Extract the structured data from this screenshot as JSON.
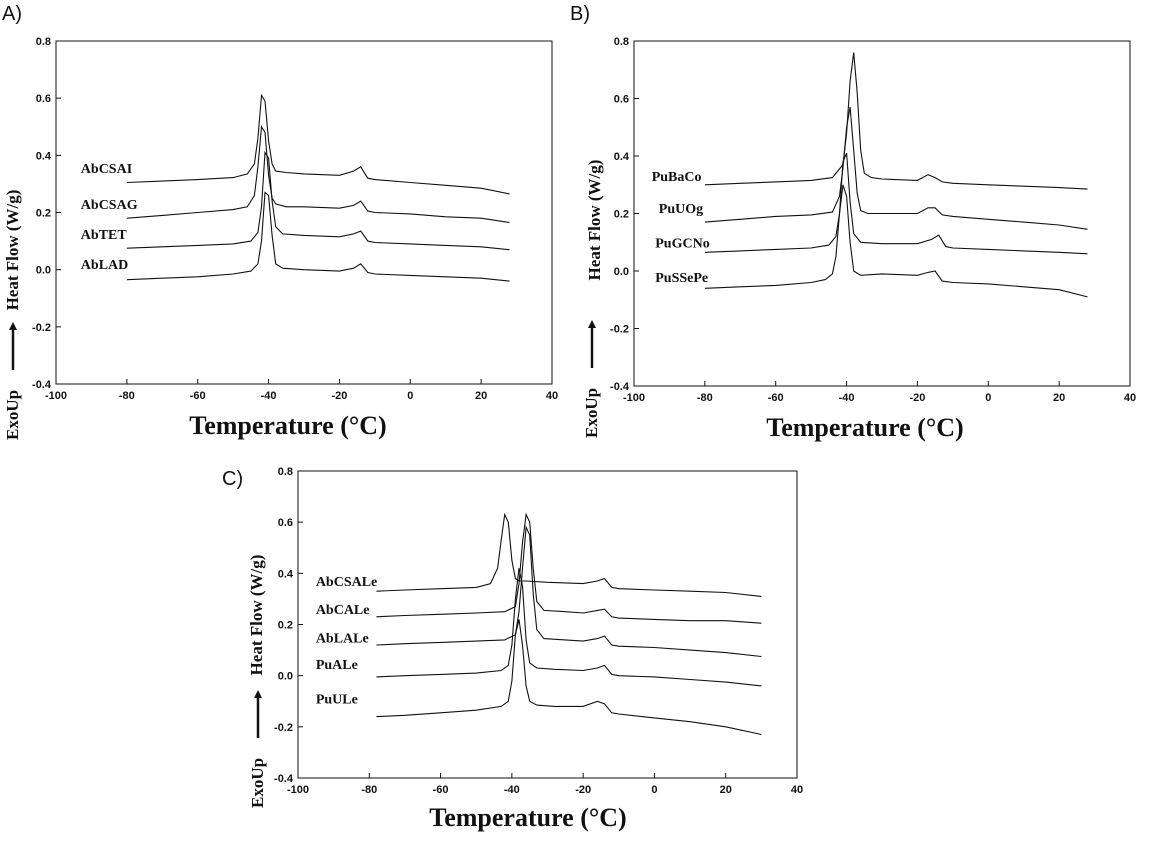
{
  "chart_data": [
    {
      "panel": "A)",
      "type": "line",
      "xlabel": "Temperature (°C)",
      "ylabel": "Heat Flow (W/g)",
      "exo_label": "ExoUp",
      "xlim": [
        -100,
        40
      ],
      "ylim": [
        -0.4,
        0.8
      ],
      "xticks": [
        -100,
        -80,
        -60,
        -40,
        -20,
        0,
        20,
        40
      ],
      "yticks": [
        -0.4,
        -0.2,
        0.0,
        0.2,
        0.4,
        0.6,
        0.8
      ],
      "xtick_labels": [
        "-100",
        "-80",
        "-60",
        "-40",
        "-20",
        "0",
        "20",
        "40"
      ],
      "ytick_labels": [
        "-0.4",
        "-0.2",
        "0.0",
        "0.2",
        "0.4",
        "0.6",
        "0.8"
      ],
      "series": [
        {
          "name": "AbCSAI",
          "label_at": [
            -93,
            0.355
          ],
          "x": [
            -80,
            -70,
            -60,
            -50,
            -46,
            -44,
            -43,
            -42,
            -41,
            -40,
            -39,
            -38,
            -35,
            -30,
            -20,
            -16,
            -14,
            -12,
            -10,
            0,
            10,
            20,
            28
          ],
          "y": [
            0.305,
            0.31,
            0.315,
            0.322,
            0.335,
            0.37,
            0.46,
            0.61,
            0.59,
            0.45,
            0.37,
            0.345,
            0.34,
            0.335,
            0.33,
            0.345,
            0.36,
            0.32,
            0.315,
            0.305,
            0.295,
            0.285,
            0.265
          ]
        },
        {
          "name": "AbCSAG",
          "label_at": [
            -93,
            0.23
          ],
          "x": [
            -80,
            -70,
            -60,
            -50,
            -46,
            -44,
            -43,
            -42,
            -41,
            -40,
            -39,
            -38,
            -35,
            -30,
            -20,
            -16,
            -14,
            -12,
            -10,
            0,
            10,
            20,
            28
          ],
          "y": [
            0.18,
            0.19,
            0.2,
            0.21,
            0.22,
            0.26,
            0.36,
            0.5,
            0.48,
            0.33,
            0.25,
            0.23,
            0.22,
            0.22,
            0.215,
            0.225,
            0.24,
            0.205,
            0.2,
            0.195,
            0.185,
            0.18,
            0.165
          ]
        },
        {
          "name": "AbTET",
          "label_at": [
            -93,
            0.125
          ],
          "x": [
            -80,
            -70,
            -60,
            -50,
            -45,
            -43,
            -42,
            -41,
            -40,
            -39,
            -38,
            -36,
            -30,
            -20,
            -16,
            -14,
            -12,
            -10,
            0,
            10,
            20,
            28
          ],
          "y": [
            0.075,
            0.08,
            0.085,
            0.09,
            0.1,
            0.13,
            0.22,
            0.41,
            0.39,
            0.24,
            0.15,
            0.125,
            0.12,
            0.115,
            0.125,
            0.135,
            0.1,
            0.095,
            0.09,
            0.085,
            0.08,
            0.07
          ]
        },
        {
          "name": "AbLAD",
          "label_at": [
            -93,
            0.02
          ],
          "x": [
            -80,
            -70,
            -60,
            -50,
            -45,
            -43,
            -42,
            -41,
            -40,
            -39,
            -38,
            -36,
            -30,
            -20,
            -16,
            -14,
            -12,
            -10,
            0,
            10,
            20,
            28
          ],
          "y": [
            -0.035,
            -0.03,
            -0.025,
            -0.015,
            -0.005,
            0.02,
            0.1,
            0.27,
            0.26,
            0.12,
            0.02,
            0.005,
            0.0,
            -0.005,
            0.005,
            0.02,
            -0.01,
            -0.015,
            -0.02,
            -0.025,
            -0.03,
            -0.04
          ]
        }
      ]
    },
    {
      "panel": "B)",
      "type": "line",
      "xlabel": "Temperature (°C)",
      "ylabel": "Heat Flow (W/g)",
      "exo_label": "ExoUp",
      "xlim": [
        -100,
        40
      ],
      "ylim": [
        -0.4,
        0.8
      ],
      "xticks": [
        -100,
        -80,
        -60,
        -40,
        -20,
        0,
        20,
        40
      ],
      "yticks": [
        -0.4,
        -0.2,
        0.0,
        0.2,
        0.4,
        0.6,
        0.8
      ],
      "xtick_labels": [
        "-100",
        "-80",
        "-60",
        "-40",
        "-20",
        "0",
        "20",
        "40"
      ],
      "ytick_labels": [
        "-0.4",
        "-0.2",
        "0.0",
        "0.2",
        "0.4",
        "0.6",
        "0.8"
      ],
      "series": [
        {
          "name": "PuBaCo",
          "label_at": [
            -95,
            0.33
          ],
          "x": [
            -80,
            -70,
            -60,
            -50,
            -44,
            -41,
            -40,
            -39,
            -38,
            -37,
            -36,
            -35,
            -33,
            -30,
            -20,
            -17,
            -15,
            -13,
            -10,
            0,
            10,
            20,
            28
          ],
          "y": [
            0.3,
            0.305,
            0.31,
            0.315,
            0.325,
            0.37,
            0.48,
            0.66,
            0.76,
            0.62,
            0.42,
            0.34,
            0.325,
            0.32,
            0.315,
            0.335,
            0.325,
            0.31,
            0.305,
            0.3,
            0.295,
            0.29,
            0.285
          ]
        },
        {
          "name": "PuUOg",
          "label_at": [
            -93,
            0.22
          ],
          "x": [
            -80,
            -70,
            -60,
            -50,
            -44,
            -42,
            -41,
            -40,
            -39,
            -38,
            -37,
            -36,
            -34,
            -30,
            -20,
            -17,
            -15,
            -13,
            -10,
            0,
            10,
            20,
            28
          ],
          "y": [
            0.17,
            0.18,
            0.19,
            0.195,
            0.205,
            0.26,
            0.36,
            0.5,
            0.57,
            0.42,
            0.27,
            0.21,
            0.2,
            0.2,
            0.2,
            0.22,
            0.22,
            0.195,
            0.19,
            0.18,
            0.17,
            0.16,
            0.145
          ]
        },
        {
          "name": "PuGCNo",
          "label_at": [
            -94,
            0.1
          ],
          "x": [
            -80,
            -70,
            -60,
            -50,
            -45,
            -43,
            -42,
            -41,
            -40,
            -39,
            -38,
            -36,
            -30,
            -20,
            -16,
            -14,
            -12,
            -10,
            0,
            10,
            20,
            28
          ],
          "y": [
            0.065,
            0.07,
            0.075,
            0.08,
            0.09,
            0.12,
            0.2,
            0.38,
            0.41,
            0.24,
            0.13,
            0.1,
            0.095,
            0.095,
            0.11,
            0.125,
            0.085,
            0.08,
            0.075,
            0.07,
            0.065,
            0.06
          ]
        },
        {
          "name": "PuSSePe",
          "label_at": [
            -94,
            -0.02
          ],
          "x": [
            -80,
            -70,
            -60,
            -50,
            -46,
            -44,
            -43,
            -42,
            -41,
            -40,
            -39,
            -38,
            -36,
            -30,
            -20,
            -17,
            -15,
            -13,
            -10,
            0,
            10,
            20,
            28
          ],
          "y": [
            -0.06,
            -0.055,
            -0.05,
            -0.04,
            -0.03,
            -0.01,
            0.05,
            0.2,
            0.3,
            0.26,
            0.1,
            0.0,
            -0.015,
            -0.01,
            -0.015,
            -0.005,
            0.0,
            -0.035,
            -0.04,
            -0.045,
            -0.055,
            -0.065,
            -0.09
          ]
        }
      ]
    },
    {
      "panel": "C)",
      "type": "line",
      "xlabel": "Temperature (°C)",
      "ylabel": "Heat Flow (W/g)",
      "exo_label": "ExoUp",
      "xlim": [
        -100,
        40
      ],
      "ylim": [
        -0.4,
        0.8
      ],
      "xticks": [
        -100,
        -80,
        -60,
        -40,
        -20,
        0,
        20,
        40
      ],
      "yticks": [
        -0.4,
        -0.2,
        0.0,
        0.2,
        0.4,
        0.6,
        0.8
      ],
      "xtick_labels": [
        "-100",
        "-80",
        "-60",
        "-40",
        "-20",
        "0",
        "20",
        "40"
      ],
      "ytick_labels": [
        "-0.4",
        "-0.2",
        "0.0",
        "0.2",
        "0.4",
        "0.6",
        "0.8"
      ],
      "series": [
        {
          "name": "AbCSALe",
          "label_at": [
            -95,
            0.37
          ],
          "x": [
            -78,
            -70,
            -60,
            -50,
            -46,
            -44,
            -43,
            -42,
            -41,
            -40,
            -39,
            -38,
            -36,
            -30,
            -20,
            -16,
            -14,
            -12,
            -10,
            0,
            10,
            20,
            30
          ],
          "y": [
            0.33,
            0.335,
            0.34,
            0.345,
            0.36,
            0.42,
            0.53,
            0.63,
            0.6,
            0.45,
            0.38,
            0.37,
            0.37,
            0.365,
            0.36,
            0.37,
            0.38,
            0.345,
            0.34,
            0.335,
            0.33,
            0.325,
            0.31
          ]
        },
        {
          "name": "AbCALe",
          "label_at": [
            -95,
            0.26
          ],
          "x": [
            -78,
            -70,
            -60,
            -50,
            -42,
            -39,
            -38,
            -37,
            -36,
            -35,
            -34,
            -33,
            -31,
            -25,
            -20,
            -16,
            -14,
            -12,
            -10,
            0,
            10,
            20,
            30
          ],
          "y": [
            0.23,
            0.235,
            0.24,
            0.245,
            0.25,
            0.27,
            0.36,
            0.52,
            0.63,
            0.6,
            0.42,
            0.29,
            0.255,
            0.25,
            0.245,
            0.255,
            0.26,
            0.23,
            0.225,
            0.22,
            0.215,
            0.215,
            0.205
          ]
        },
        {
          "name": "AbLALe",
          "label_at": [
            -95,
            0.15
          ],
          "x": [
            -78,
            -70,
            -60,
            -50,
            -42,
            -39,
            -38,
            -37,
            -36,
            -35,
            -34,
            -33,
            -31,
            -25,
            -20,
            -16,
            -14,
            -12,
            -10,
            0,
            10,
            20,
            30
          ],
          "y": [
            0.12,
            0.125,
            0.13,
            0.135,
            0.14,
            0.16,
            0.25,
            0.42,
            0.58,
            0.55,
            0.32,
            0.18,
            0.145,
            0.14,
            0.135,
            0.145,
            0.155,
            0.12,
            0.115,
            0.11,
            0.1,
            0.09,
            0.075
          ]
        },
        {
          "name": "PuALe",
          "label_at": [
            -95,
            0.045
          ],
          "x": [
            -78,
            -70,
            -60,
            -50,
            -43,
            -41,
            -40,
            -39,
            -38,
            -37,
            -36,
            -35,
            -33,
            -28,
            -20,
            -16,
            -14,
            -12,
            -10,
            0,
            10,
            20,
            30
          ],
          "y": [
            -0.005,
            0.0,
            0.005,
            0.01,
            0.02,
            0.04,
            0.12,
            0.3,
            0.42,
            0.35,
            0.14,
            0.05,
            0.03,
            0.025,
            0.02,
            0.03,
            0.04,
            0.005,
            0.0,
            -0.005,
            -0.015,
            -0.025,
            -0.04
          ]
        },
        {
          "name": "PuULe",
          "label_at": [
            -95,
            -0.09
          ],
          "x": [
            -78,
            -70,
            -60,
            -50,
            -43,
            -41,
            -40,
            -39,
            -38,
            -37,
            -36,
            -35,
            -33,
            -28,
            -20,
            -16,
            -14,
            -12,
            -10,
            0,
            10,
            20,
            30
          ],
          "y": [
            -0.16,
            -0.155,
            -0.145,
            -0.135,
            -0.12,
            -0.1,
            -0.02,
            0.16,
            0.22,
            0.12,
            -0.04,
            -0.1,
            -0.115,
            -0.12,
            -0.12,
            -0.1,
            -0.11,
            -0.145,
            -0.15,
            -0.165,
            -0.18,
            -0.2,
            -0.23
          ]
        }
      ]
    }
  ]
}
